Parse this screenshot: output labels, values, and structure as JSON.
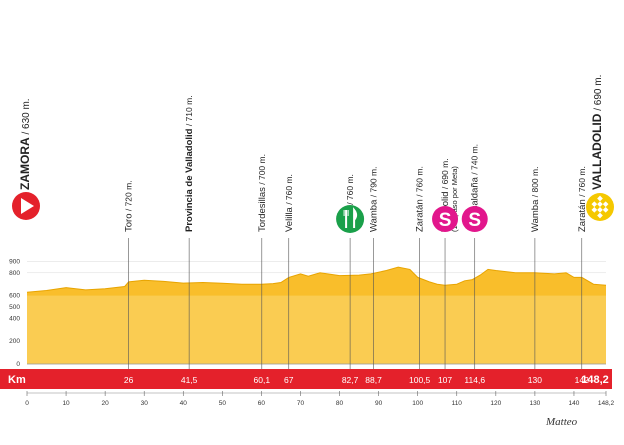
{
  "chart_data": {
    "type": "area",
    "xlabel": "Km",
    "ylim": [
      0,
      1000
    ],
    "y_ticks": [
      0,
      200,
      400,
      500,
      600,
      800,
      900
    ],
    "x_ticks": [
      0,
      10,
      20,
      30,
      40,
      50,
      60,
      70,
      80,
      90,
      100,
      110,
      120,
      130,
      140,
      148.2
    ],
    "x_tick_labels": [
      "0",
      "10",
      "20",
      "30",
      "40",
      "50",
      "60",
      "70",
      "80",
      "90",
      "100",
      "110",
      "120",
      "130",
      "140",
      "148,2"
    ],
    "profile": {
      "x": [
        0,
        5,
        10,
        15,
        20,
        25,
        26,
        30,
        35,
        40,
        45,
        50,
        55,
        60,
        63,
        65,
        67,
        70,
        72,
        75,
        80,
        85,
        88,
        92,
        95,
        98,
        100,
        103,
        105,
        107,
        110,
        112,
        114,
        116,
        118,
        120,
        125,
        130,
        135,
        138,
        140,
        142,
        145,
        148.2
      ],
      "y": [
        630,
        645,
        670,
        650,
        660,
        680,
        720,
        735,
        725,
        710,
        715,
        708,
        700,
        700,
        705,
        715,
        760,
        790,
        770,
        800,
        775,
        780,
        790,
        820,
        850,
        830,
        760,
        720,
        700,
        690,
        700,
        730,
        740,
        780,
        830,
        820,
        800,
        800,
        790,
        800,
        760,
        760,
        700,
        690
      ]
    },
    "waypoints": [
      {
        "km": 0,
        "km_label": "0",
        "name": "ZAMORA",
        "elev": "630 m."
      },
      {
        "km": 26,
        "km_label": "26",
        "name": "Toro",
        "elev": "720 m."
      },
      {
        "km": 41.5,
        "km_label": "41,5",
        "name": "Provincia de Valladolid",
        "elev": "710 m."
      },
      {
        "km": 60.1,
        "km_label": "60,1",
        "name": "Tordesillas",
        "elev": "700 m."
      },
      {
        "km": 67,
        "km_label": "67",
        "name": "Velilla",
        "elev": "760 m."
      },
      {
        "km": 82.7,
        "km_label": "82,7",
        "name": "Velilla",
        "elev": "760 m."
      },
      {
        "km": 88.7,
        "km_label": "88,7",
        "name": "Wamba",
        "elev": "790 m."
      },
      {
        "km": 100.5,
        "km_label": "100,5",
        "name": "Zaratán",
        "elev": "760 m."
      },
      {
        "km": 107,
        "km_label": "107",
        "name": "Valladolid",
        "elev": "690 m.",
        "sub": "(1er paso por Meta)"
      },
      {
        "km": 114.6,
        "km_label": "114,6",
        "name": "Fuensaldaña",
        "elev": "740 m."
      },
      {
        "km": 130,
        "km_label": "130",
        "name": "Wamba",
        "elev": "800 m."
      },
      {
        "km": 142,
        "km_label": "142",
        "name": "Zaratán",
        "elev": "760 m."
      },
      {
        "km": 148.2,
        "km_label": "148,2",
        "name": "VALLADOLID",
        "elev": "690 m."
      }
    ],
    "markers": [
      {
        "km": 82.7,
        "type": "feed",
        "icon": "fork-knife-icon",
        "color": "#1aa04a"
      },
      {
        "km": 107,
        "type": "sprint",
        "text": "S",
        "color": "#e2168c"
      },
      {
        "km": 114.6,
        "type": "sprint",
        "text": "S",
        "color": "#e2168c"
      }
    ],
    "start_icon": {
      "icon": "play-arrow-icon",
      "color": "#e4212b"
    },
    "finish_icon": {
      "icon": "checkered-flag-icon",
      "color": "#f5c800"
    },
    "colors": {
      "fill": "#f9be2b",
      "fill_light": "#fde79a",
      "band": "#e4212b",
      "line": "#555555"
    }
  },
  "watermark": "Matteo"
}
